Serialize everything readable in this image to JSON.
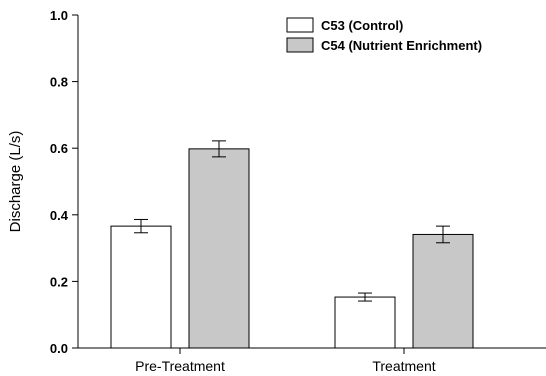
{
  "chart_data": {
    "type": "bar",
    "title": "",
    "xlabel": "",
    "ylabel": "Discharge (L/s)",
    "ylim": [
      0,
      1.0
    ],
    "yticks": [
      "0.0",
      "0.2",
      "0.4",
      "0.6",
      "0.8",
      "1.0"
    ],
    "grid": false,
    "legend_position": "top-right",
    "categories": [
      "Pre-Treatment",
      "Treatment"
    ],
    "series": [
      {
        "name": "C53 (Control)",
        "color": "#ffffff",
        "values": [
          0.366,
          0.153
        ],
        "errors": [
          0.02,
          0.012
        ]
      },
      {
        "name": "C54 (Nutrient Enrichment)",
        "color": "#c8c8c8",
        "values": [
          0.598,
          0.341
        ],
        "errors": [
          0.024,
          0.025
        ]
      }
    ]
  }
}
